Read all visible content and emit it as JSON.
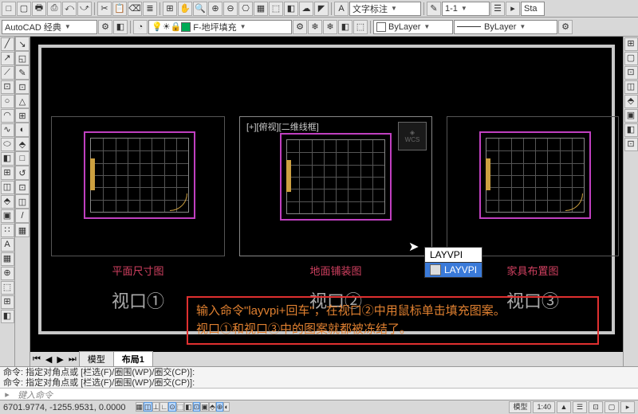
{
  "toolbar1": {
    "icons": [
      "□",
      "▢",
      "🖶",
      "⎙",
      "⤺",
      "⤻",
      "✂",
      "📋",
      "⌫",
      "≣"
    ],
    "mid_icons": [
      "⊞",
      "✋",
      "🔍",
      "⊕",
      "⊖",
      "⎔",
      "▦",
      "⬚",
      "◧",
      "☁",
      "◤"
    ],
    "annotation_label": "文字标注",
    "scale_label": "1-1",
    "right_icons": [
      "✎",
      "☰",
      "▸"
    ],
    "sta": "Sta"
  },
  "toolbar2": {
    "workspace": "AutoCAD 经典",
    "layer_icons": [
      "◔",
      "💡",
      "☀",
      "🔒",
      "▦"
    ],
    "layer_name": "F-地坪填充",
    "layer_tool_icons": [
      "⚙",
      "❄",
      "❄",
      "◧",
      "⬚"
    ],
    "bylayer1": "ByLayer",
    "bylayer2": "ByLayer",
    "gear": "⚙"
  },
  "left_tools": [
    "╱",
    "↗",
    "⟋",
    "⊡",
    "○",
    "◠",
    "∿",
    "⬭",
    "◧",
    "⊞",
    "◫",
    "⬘",
    "▣",
    "∷",
    "A",
    "▦",
    "⊕",
    "⬚",
    "⊞",
    "◧"
  ],
  "left_tools2": [
    "↘",
    "◱",
    "✎",
    "⊡",
    "△",
    "⊞",
    "◐",
    "⬘",
    "□",
    "↺",
    "⊡",
    "◫",
    "/",
    "▦"
  ],
  "right_tools": [
    "⊞",
    "▢",
    "⊡",
    "◫",
    "⬘",
    "▣",
    "◧",
    "⊡"
  ],
  "viewports": {
    "vp1": {
      "title": "平面尺寸图",
      "label": "视口①"
    },
    "vp2": {
      "title": "地面铺装图",
      "label": "视口②",
      "top_label": "[+][俯视][二维线框]",
      "wcs": "WCS"
    },
    "vp3": {
      "title": "家具布置图",
      "label": "视口③"
    }
  },
  "floor": {
    "border_color": "#c040c0",
    "grid_color": "#555555",
    "tag_color": "#cca040",
    "cols": 8,
    "rows": 6
  },
  "autocomplete": {
    "input": "LAYVPI",
    "item": "LAYVPI"
  },
  "instruction": {
    "line1": "输入命令\"layvpi+回车\"，在视口②中用鼠标单击填充图案。",
    "line2": "视口①和视口③中的图案就都被冻结了。"
  },
  "tabs": {
    "nav": [
      "⏮",
      "◀",
      "▶",
      "⏭"
    ],
    "model": "模型",
    "layout1": "布局1"
  },
  "cmd": {
    "hist1": "命令: 指定对角点或 [栏选(F)/圈围(WP)/圈交(CP)]:",
    "hist2": "命令: 指定对角点或 [栏选(F)/圈围(WP)/圈交(CP)]:",
    "prompt": "键入命令"
  },
  "status": {
    "coords": "6701.9774, -1255.9531, 0.0000",
    "toggles": [
      "▦",
      "◫",
      "⊥",
      "∟",
      "⊙",
      "⬚",
      "◧",
      "⊡",
      "▣",
      "⬘",
      "⊕",
      "◐"
    ],
    "right": {
      "model_space": "模型",
      "scale": "1:40",
      "icons": [
        "▲",
        "☰",
        "⊡",
        "▢",
        "▸"
      ]
    }
  }
}
